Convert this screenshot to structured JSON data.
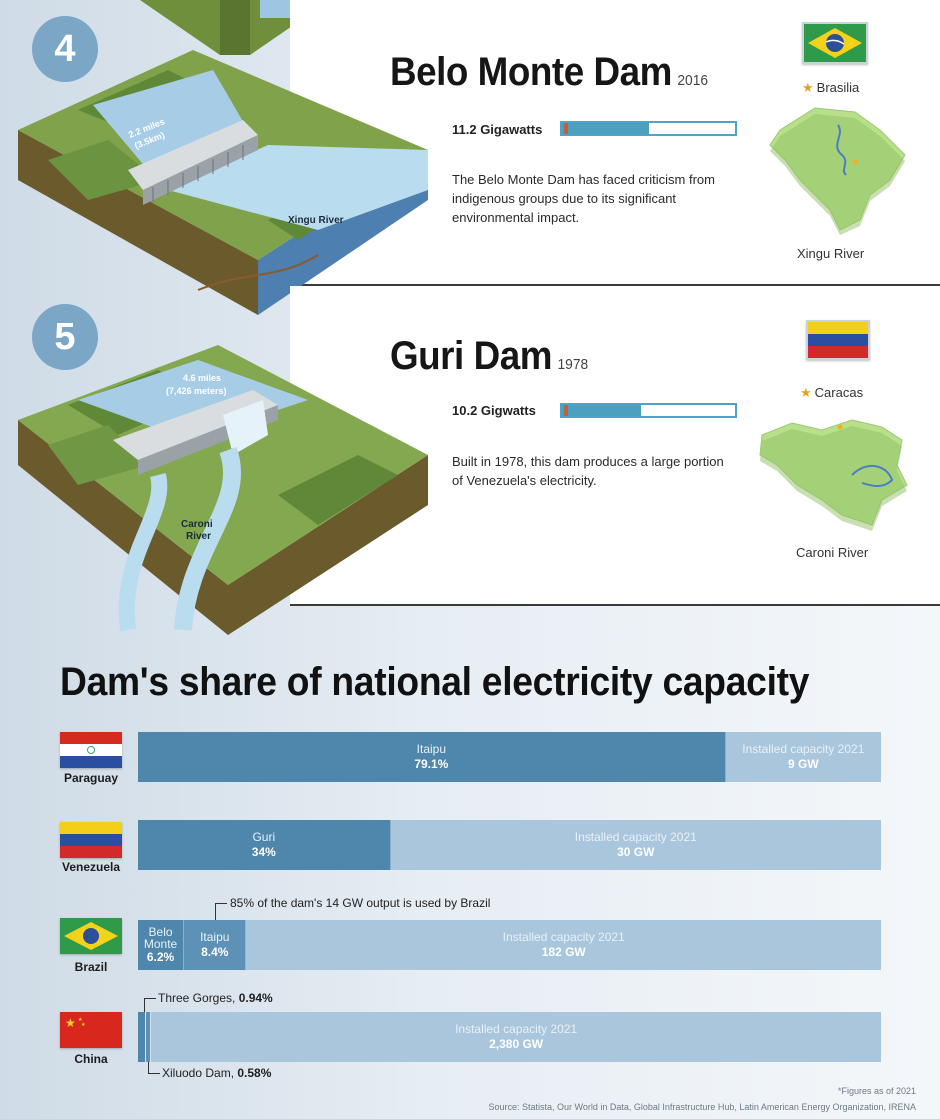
{
  "dams": [
    {
      "number": "4",
      "name": "Belo Monte Dam",
      "year": "2016",
      "capacity_label": "11.2 Gigawatts",
      "capacity_gw": 11.2,
      "description": "The Belo Monte Dam has faced criticism from indigenous groups due to its significant environmental impact.",
      "capital": "Brasilia",
      "river": "Xingu River",
      "illustration_length": "2.2 miles (3.5km)",
      "illustration_river": "Xingu River"
    },
    {
      "number": "5",
      "name": "Guri Dam",
      "year": "1978",
      "capacity_label": "10.2 Gigwatts",
      "capacity_gw": 10.2,
      "description": "Built in 1978, this dam produces a large portion of Venezuela's electricity.",
      "capital": "Caracas",
      "river": "Caroni River",
      "illustration_length": "4.6 miles (7,426 meters)",
      "illustration_river": "Caroni River"
    }
  ],
  "chart_data": {
    "type": "bar",
    "title": "Dam's share of national electricity capacity",
    "stacked": true,
    "unit": "% of national installed capacity",
    "rows": [
      {
        "country": "Paraguay",
        "segments": [
          {
            "name": "Itaipu",
            "label": "79.1%",
            "value": 79.1
          }
        ],
        "installed_label": "Installed capacity 2021",
        "installed_value": "9 GW"
      },
      {
        "country": "Venezuela",
        "segments": [
          {
            "name": "Guri",
            "label": "34%",
            "value": 34
          }
        ],
        "installed_label": "Installed capacity 2021",
        "installed_value": "30 GW"
      },
      {
        "country": "Brazil",
        "segments": [
          {
            "name": "Belo Monte",
            "label": "6.2%",
            "value": 6.2
          },
          {
            "name": "Itaipu",
            "label": "8.4%",
            "value": 8.4
          }
        ],
        "installed_label": "Installed capacity 2021",
        "installed_value": "182 GW"
      },
      {
        "country": "China",
        "segments": [
          {
            "name": "Three Gorges",
            "label": "0.94%",
            "value": 0.94
          },
          {
            "name": "Xiluodo Dam",
            "label": "0.58%",
            "value": 0.58
          }
        ],
        "installed_label": "Installed capacity 2021",
        "installed_value": "2,380 GW"
      }
    ],
    "annotations": {
      "itaipu_brazil": "85% of the dam's 14 GW output is used by Brazil",
      "three_gorges_prefix": "Three Gorges, ",
      "three_gorges_value": "0.94%",
      "xiluodo_prefix": "Xiluodo Dam, ",
      "xiluodo_value": "0.58%"
    },
    "footnote": "*Figures as of 2021",
    "source": "Source: Statista, Our World in Data, Global Infrastructure Hub, Latin American Energy Organization, IRENA"
  },
  "colors": {
    "dam_share": "#4f86ab",
    "installed_capacity": "#a9c6dc",
    "number_circle": "#7ba6c5",
    "capacity_bar": "#4aa0be"
  }
}
